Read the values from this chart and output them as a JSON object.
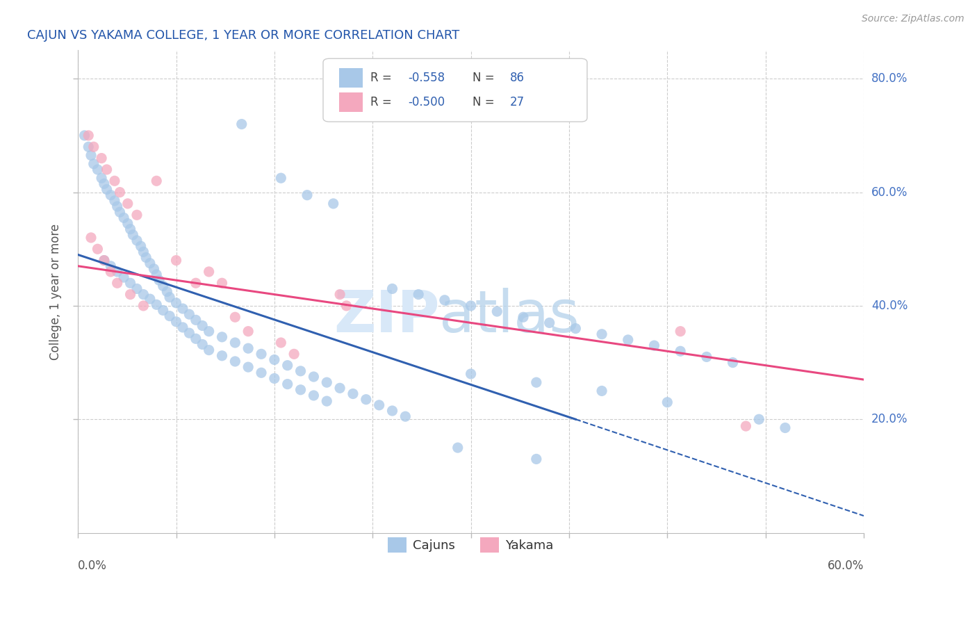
{
  "title": "CAJUN VS YAKAMA COLLEGE, 1 YEAR OR MORE CORRELATION CHART",
  "source_text": "Source: ZipAtlas.com",
  "ylabel": "College, 1 year or more",
  "xmin": 0.0,
  "xmax": 0.6,
  "ymin": 0.0,
  "ymax": 0.85,
  "ytick_labels": [
    "20.0%",
    "40.0%",
    "60.0%",
    "80.0%"
  ],
  "ytick_values": [
    0.2,
    0.4,
    0.6,
    0.8
  ],
  "cajun_color": "#a8c8e8",
  "yakama_color": "#f4a8be",
  "cajun_line_color": "#3060b0",
  "yakama_line_color": "#e84880",
  "title_color": "#2255aa",
  "label_color": "#4472c4",
  "text_color": "#555555",
  "cajun_dots": [
    [
      0.005,
      0.7
    ],
    [
      0.008,
      0.68
    ],
    [
      0.01,
      0.665
    ],
    [
      0.012,
      0.65
    ],
    [
      0.015,
      0.64
    ],
    [
      0.018,
      0.625
    ],
    [
      0.02,
      0.615
    ],
    [
      0.022,
      0.605
    ],
    [
      0.025,
      0.595
    ],
    [
      0.028,
      0.585
    ],
    [
      0.03,
      0.575
    ],
    [
      0.032,
      0.565
    ],
    [
      0.035,
      0.555
    ],
    [
      0.038,
      0.545
    ],
    [
      0.04,
      0.535
    ],
    [
      0.042,
      0.525
    ],
    [
      0.045,
      0.515
    ],
    [
      0.048,
      0.505
    ],
    [
      0.05,
      0.495
    ],
    [
      0.052,
      0.485
    ],
    [
      0.055,
      0.475
    ],
    [
      0.058,
      0.465
    ],
    [
      0.06,
      0.455
    ],
    [
      0.062,
      0.445
    ],
    [
      0.065,
      0.435
    ],
    [
      0.068,
      0.425
    ],
    [
      0.07,
      0.415
    ],
    [
      0.075,
      0.405
    ],
    [
      0.08,
      0.395
    ],
    [
      0.085,
      0.385
    ],
    [
      0.09,
      0.375
    ],
    [
      0.095,
      0.365
    ],
    [
      0.1,
      0.355
    ],
    [
      0.11,
      0.345
    ],
    [
      0.12,
      0.335
    ],
    [
      0.13,
      0.325
    ],
    [
      0.14,
      0.315
    ],
    [
      0.15,
      0.305
    ],
    [
      0.16,
      0.295
    ],
    [
      0.17,
      0.285
    ],
    [
      0.18,
      0.275
    ],
    [
      0.19,
      0.265
    ],
    [
      0.2,
      0.255
    ],
    [
      0.21,
      0.245
    ],
    [
      0.22,
      0.235
    ],
    [
      0.23,
      0.225
    ],
    [
      0.24,
      0.215
    ],
    [
      0.25,
      0.205
    ],
    [
      0.02,
      0.48
    ],
    [
      0.025,
      0.47
    ],
    [
      0.03,
      0.46
    ],
    [
      0.035,
      0.45
    ],
    [
      0.04,
      0.44
    ],
    [
      0.045,
      0.43
    ],
    [
      0.05,
      0.42
    ],
    [
      0.055,
      0.412
    ],
    [
      0.06,
      0.402
    ],
    [
      0.065,
      0.392
    ],
    [
      0.07,
      0.382
    ],
    [
      0.075,
      0.372
    ],
    [
      0.08,
      0.362
    ],
    [
      0.085,
      0.352
    ],
    [
      0.09,
      0.342
    ],
    [
      0.095,
      0.332
    ],
    [
      0.1,
      0.322
    ],
    [
      0.11,
      0.312
    ],
    [
      0.12,
      0.302
    ],
    [
      0.13,
      0.292
    ],
    [
      0.14,
      0.282
    ],
    [
      0.15,
      0.272
    ],
    [
      0.16,
      0.262
    ],
    [
      0.17,
      0.252
    ],
    [
      0.18,
      0.242
    ],
    [
      0.19,
      0.232
    ],
    [
      0.125,
      0.72
    ],
    [
      0.155,
      0.625
    ],
    [
      0.175,
      0.595
    ],
    [
      0.195,
      0.58
    ],
    [
      0.24,
      0.43
    ],
    [
      0.26,
      0.42
    ],
    [
      0.28,
      0.41
    ],
    [
      0.3,
      0.4
    ],
    [
      0.32,
      0.39
    ],
    [
      0.34,
      0.38
    ],
    [
      0.36,
      0.37
    ],
    [
      0.38,
      0.36
    ],
    [
      0.4,
      0.35
    ],
    [
      0.42,
      0.34
    ],
    [
      0.44,
      0.33
    ],
    [
      0.46,
      0.32
    ],
    [
      0.48,
      0.31
    ],
    [
      0.5,
      0.3
    ],
    [
      0.52,
      0.2
    ],
    [
      0.54,
      0.185
    ],
    [
      0.3,
      0.28
    ],
    [
      0.35,
      0.265
    ],
    [
      0.4,
      0.25
    ],
    [
      0.45,
      0.23
    ],
    [
      0.29,
      0.15
    ],
    [
      0.35,
      0.13
    ]
  ],
  "yakama_dots": [
    [
      0.008,
      0.7
    ],
    [
      0.012,
      0.68
    ],
    [
      0.018,
      0.66
    ],
    [
      0.022,
      0.64
    ],
    [
      0.028,
      0.62
    ],
    [
      0.032,
      0.6
    ],
    [
      0.038,
      0.58
    ],
    [
      0.045,
      0.56
    ],
    [
      0.01,
      0.52
    ],
    [
      0.015,
      0.5
    ],
    [
      0.02,
      0.48
    ],
    [
      0.025,
      0.46
    ],
    [
      0.03,
      0.44
    ],
    [
      0.04,
      0.42
    ],
    [
      0.05,
      0.4
    ],
    [
      0.06,
      0.62
    ],
    [
      0.075,
      0.48
    ],
    [
      0.09,
      0.44
    ],
    [
      0.1,
      0.46
    ],
    [
      0.11,
      0.44
    ],
    [
      0.12,
      0.38
    ],
    [
      0.13,
      0.355
    ],
    [
      0.155,
      0.335
    ],
    [
      0.165,
      0.315
    ],
    [
      0.2,
      0.42
    ],
    [
      0.205,
      0.4
    ],
    [
      0.46,
      0.355
    ],
    [
      0.51,
      0.188
    ]
  ],
  "cajun_trendline_solid": [
    [
      0.0,
      0.49
    ],
    [
      0.38,
      0.2
    ]
  ],
  "cajun_trendline_dashed": [
    [
      0.38,
      0.2
    ],
    [
      0.6,
      0.03
    ]
  ],
  "yakama_trendline": [
    [
      0.0,
      0.47
    ],
    [
      0.6,
      0.27
    ]
  ]
}
